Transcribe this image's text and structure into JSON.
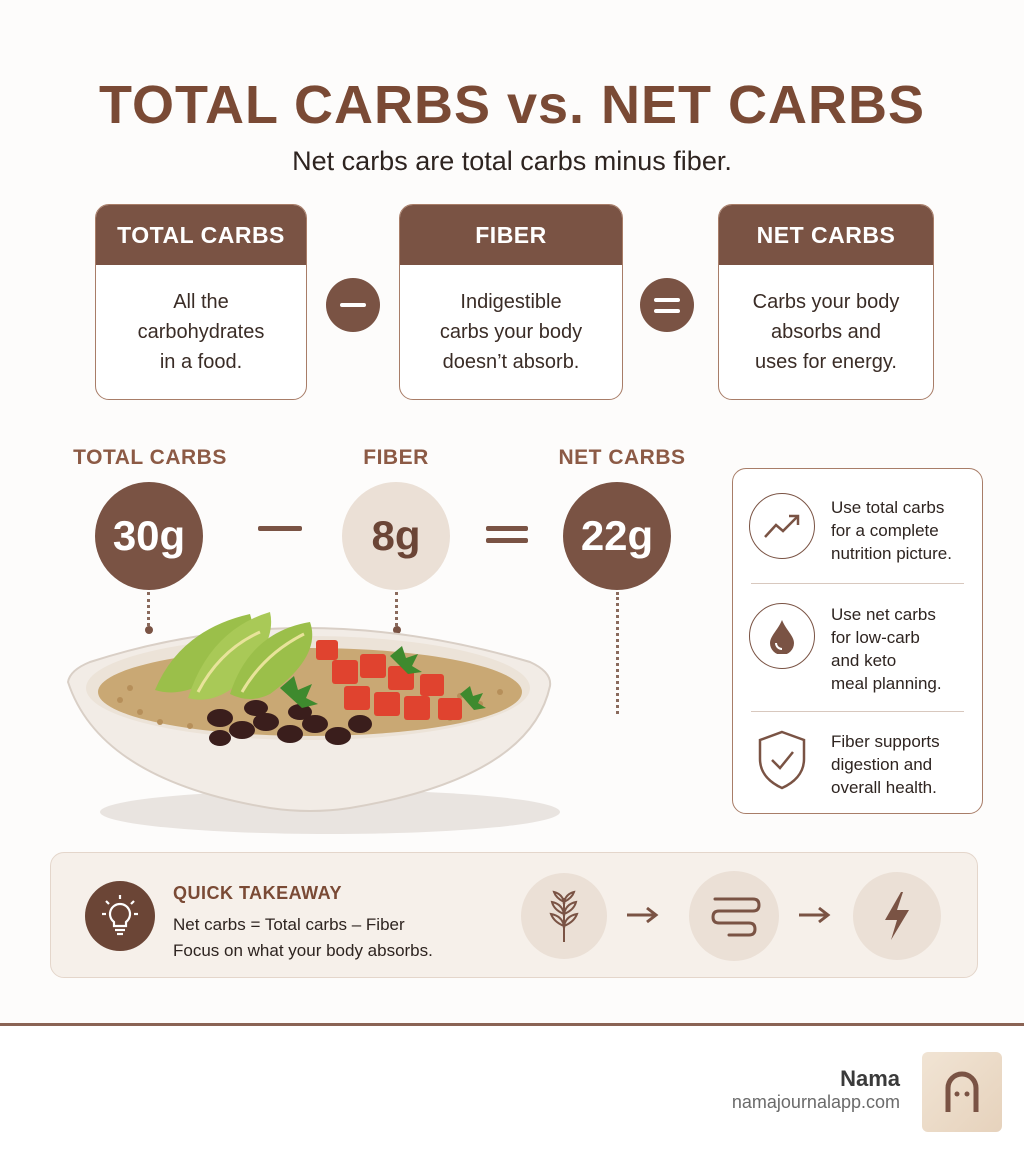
{
  "header": {
    "title": "TOTAL CARBS vs. NET CARBS",
    "subtitle": "Net carbs are total carbs minus fiber."
  },
  "definitions": [
    {
      "title": "TOTAL CARBS",
      "body": "All the\ncarbohydrates\nin a food."
    },
    {
      "title": "FIBER",
      "body": "Indigestible\ncarbs your body\ndoesn’t absorb."
    },
    {
      "title": "NET CARBS",
      "body": "Carbs your body\nabsorbs and\nuses for energy."
    }
  ],
  "example": {
    "total_label": "TOTAL CARBS",
    "total_value": "30g",
    "fiber_label": "FIBER",
    "fiber_value": "8g",
    "net_label": "NET CARBS",
    "net_value": "22g"
  },
  "tips": [
    {
      "icon": "trend-up-icon",
      "text": "Use total carbs\nfor a complete\nnutrition picture."
    },
    {
      "icon": "drop-icon",
      "text": "Use net carbs\nfor low-carb\nand keto\nmeal planning."
    },
    {
      "icon": "shield-check-icon",
      "text": "Fiber supports\ndigestion and\noverall health."
    }
  ],
  "takeaway": {
    "title": "QUICK TAKEAWAY",
    "line1": "Net carbs = Total carbs – Fiber",
    "line2": "Focus on what your body absorbs.",
    "icons": [
      "lightbulb-icon",
      "wheat-icon",
      "intestine-icon",
      "lightning-icon"
    ]
  },
  "footer": {
    "brand": "Nama",
    "url": "namajournalapp.com"
  },
  "colors": {
    "brown": "#7a5344",
    "title_brown": "#7a4a35",
    "light": "#ebe0d6"
  }
}
